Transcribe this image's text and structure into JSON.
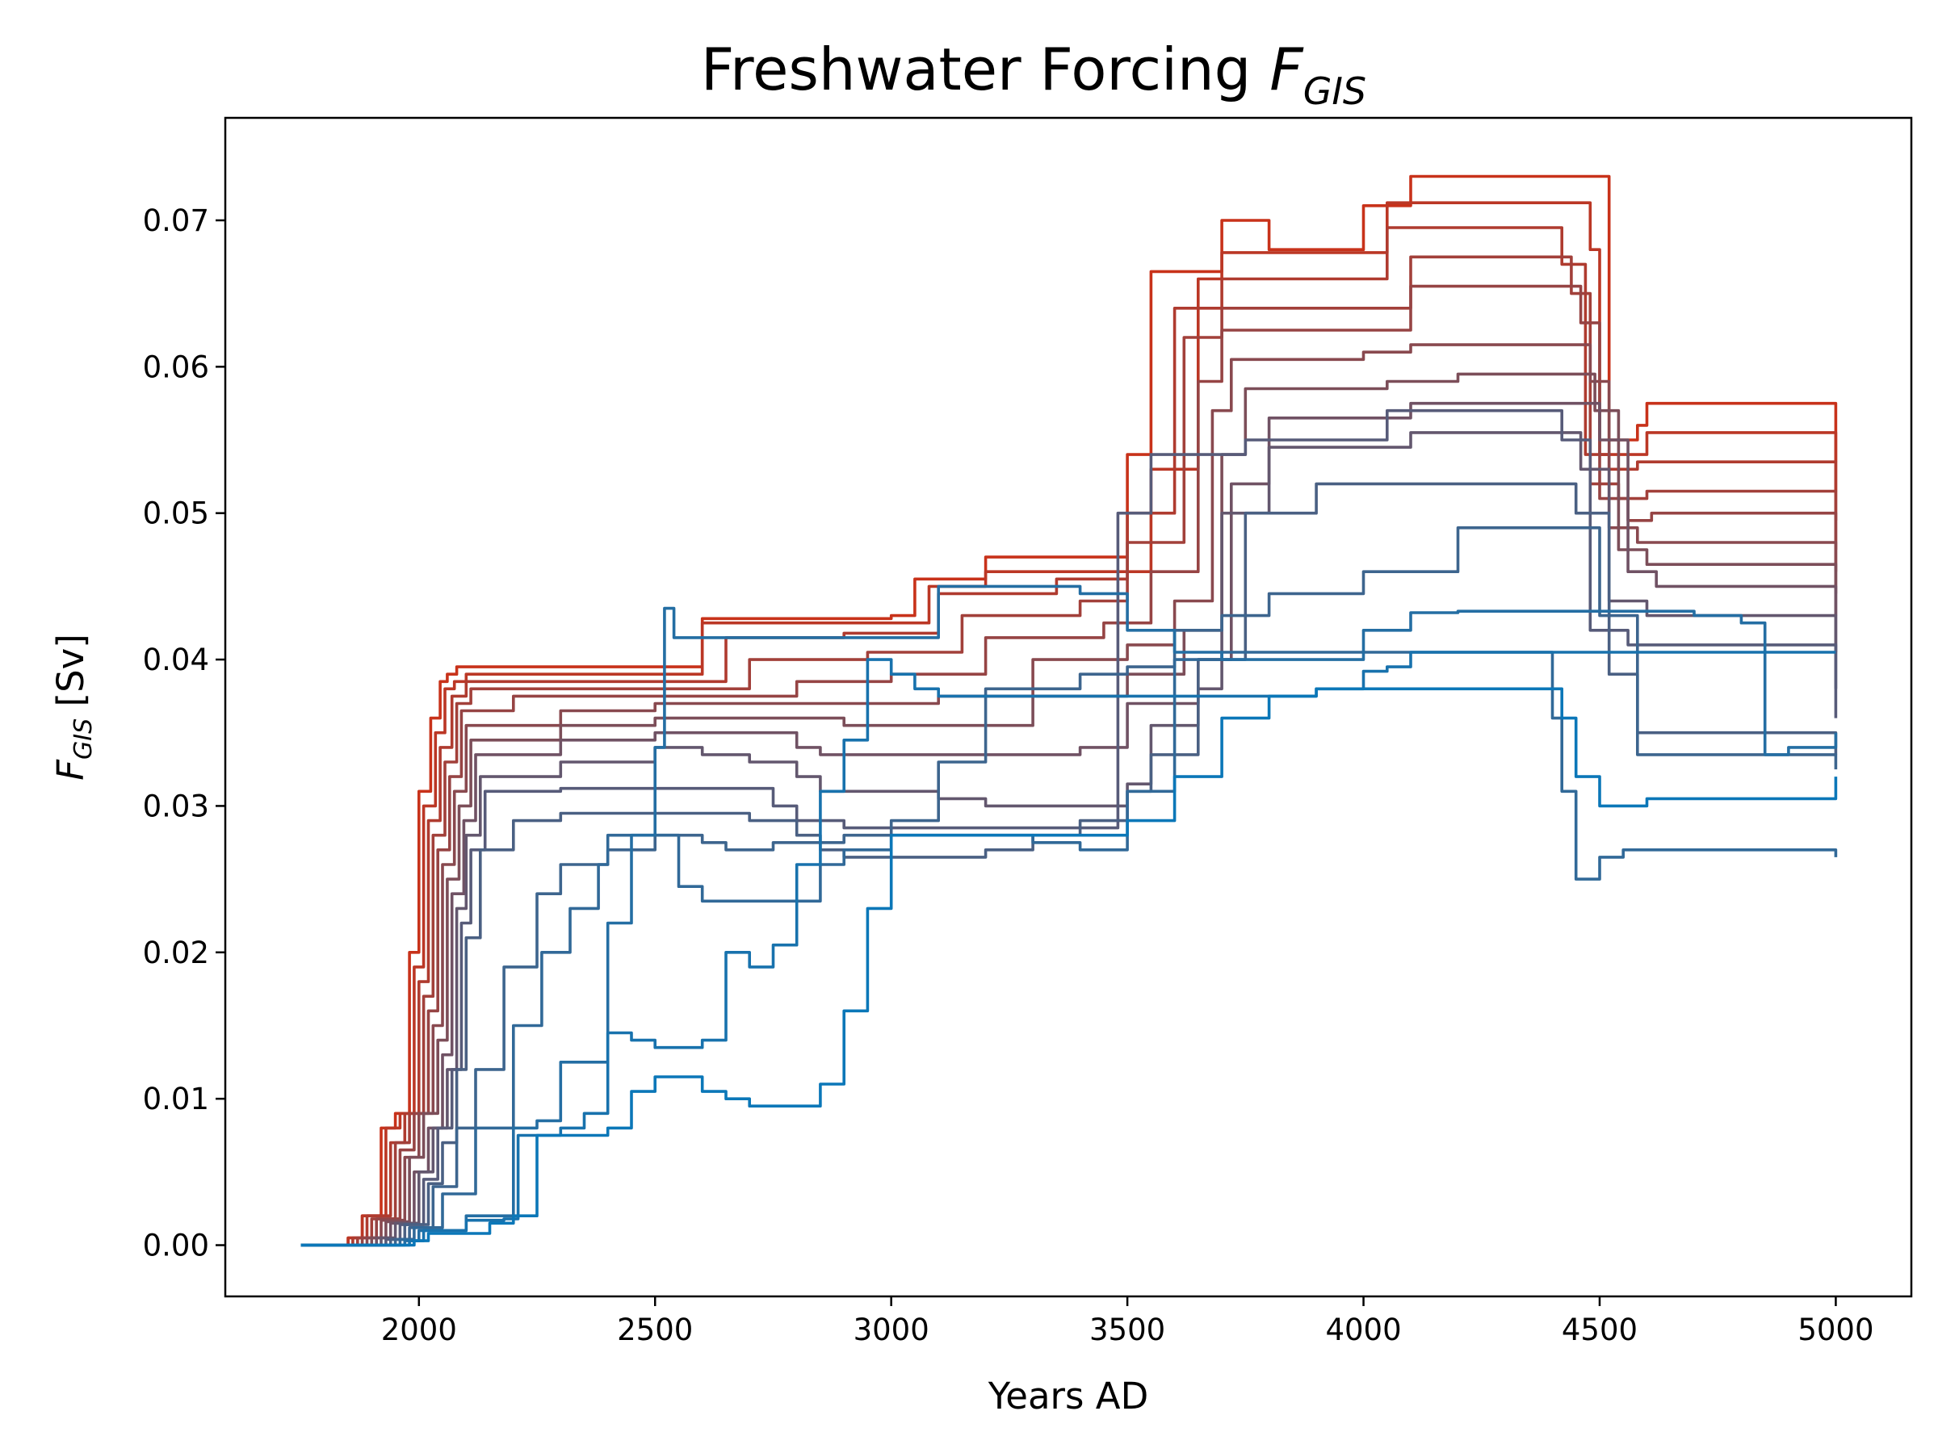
{
  "chart_data": {
    "type": "line",
    "title_main": "Freshwater Forcing ",
    "title_var": "F",
    "title_sub": "GIS",
    "xlabel": "Years AD",
    "ylabel_var": "F",
    "ylabel_sub": "GIS",
    "ylabel_unit": " [Sv]",
    "xlim": [
      1590,
      5160
    ],
    "ylim": [
      -0.0035,
      0.077
    ],
    "xticks": [
      2000,
      2500,
      3000,
      3500,
      4000,
      4500,
      5000
    ],
    "xtick_labels": [
      "2000",
      "2500",
      "3000",
      "3500",
      "4000",
      "4500",
      "5000"
    ],
    "yticks": [
      0.0,
      0.01,
      0.02,
      0.03,
      0.04,
      0.05,
      0.06,
      0.07
    ],
    "ytick_labels": [
      "0.00",
      "0.01",
      "0.02",
      "0.03",
      "0.04",
      "0.05",
      "0.06",
      "0.07"
    ],
    "grid": false,
    "legend": "none",
    "color_start": "#c8321a",
    "color_end": "#0b77b8",
    "series": [
      {
        "x": [
          1750,
          1850,
          1880,
          1920,
          1950,
          1980,
          2000,
          2025,
          2045,
          2060,
          2080,
          2100,
          2200,
          2400,
          2600,
          2800,
          3000,
          3050,
          3100,
          3200,
          3400,
          3500,
          3550,
          3600,
          3700,
          3800,
          3900,
          4000,
          4100,
          4200,
          4300,
          4500,
          4520,
          4580,
          4600,
          5000
        ],
        "y": [
          0.0,
          0.0005,
          0.002,
          0.008,
          0.009,
          0.02,
          0.031,
          0.036,
          0.0385,
          0.039,
          0.0395,
          0.0395,
          0.0395,
          0.0395,
          0.0428,
          0.0428,
          0.043,
          0.0455,
          0.0455,
          0.047,
          0.047,
          0.054,
          0.0665,
          0.0665,
          0.07,
          0.068,
          0.068,
          0.071,
          0.073,
          0.073,
          0.073,
          0.073,
          0.055,
          0.056,
          0.0575,
          0.0535
        ]
      },
      {
        "x": [
          1750,
          1850,
          1880,
          1930,
          1960,
          1990,
          2010,
          2035,
          2055,
          2075,
          2100,
          2200,
          2400,
          2600,
          2800,
          3000,
          3080,
          3200,
          3450,
          3550,
          3650,
          3700,
          3900,
          4050,
          4400,
          4480,
          4500,
          4550,
          4600,
          5000
        ],
        "y": [
          0.0,
          0.0005,
          0.002,
          0.008,
          0.009,
          0.019,
          0.03,
          0.035,
          0.038,
          0.0385,
          0.039,
          0.039,
          0.039,
          0.0425,
          0.0425,
          0.0425,
          0.045,
          0.046,
          0.046,
          0.053,
          0.066,
          0.0678,
          0.0678,
          0.0712,
          0.0712,
          0.068,
          0.054,
          0.054,
          0.0555,
          0.0515
        ]
      },
      {
        "x": [
          1750,
          1860,
          1890,
          1940,
          1970,
          2000,
          2020,
          2045,
          2070,
          2100,
          2250,
          2450,
          2650,
          2900,
          3100,
          3350,
          3500,
          3600,
          3700,
          3800,
          3950,
          4050,
          4100,
          4350,
          4420,
          4470,
          4520,
          4580,
          5000
        ],
        "y": [
          0.0,
          0.0005,
          0.002,
          0.007,
          0.009,
          0.018,
          0.029,
          0.034,
          0.0375,
          0.0385,
          0.0385,
          0.0385,
          0.0415,
          0.0418,
          0.0445,
          0.0455,
          0.05,
          0.064,
          0.066,
          0.066,
          0.066,
          0.0695,
          0.0695,
          0.0695,
          0.067,
          0.054,
          0.053,
          0.0535,
          0.0495
        ]
      },
      {
        "x": [
          1750,
          1870,
          1900,
          1950,
          1980,
          2010,
          2030,
          2055,
          2080,
          2110,
          2300,
          2500,
          2700,
          2950,
          3150,
          3400,
          3500,
          3620,
          3700,
          3850,
          4000,
          4100,
          4150,
          4350,
          4440,
          4480,
          4540,
          4600,
          5000
        ],
        "y": [
          0.0,
          0.0005,
          0.0018,
          0.007,
          0.009,
          0.017,
          0.028,
          0.033,
          0.037,
          0.038,
          0.038,
          0.038,
          0.04,
          0.0405,
          0.043,
          0.044,
          0.048,
          0.062,
          0.064,
          0.064,
          0.064,
          0.0675,
          0.0675,
          0.0675,
          0.065,
          0.052,
          0.051,
          0.0515,
          0.0475
        ]
      },
      {
        "x": [
          1750,
          1880,
          1910,
          1960,
          1990,
          2020,
          2040,
          2065,
          2090,
          2200,
          2400,
          2600,
          2800,
          3000,
          3200,
          3450,
          3550,
          3650,
          3700,
          3800,
          4000,
          4100,
          4200,
          4400,
          4460,
          4500,
          4560,
          4610,
          5000
        ],
        "y": [
          0.0,
          0.0005,
          0.0018,
          0.0065,
          0.009,
          0.016,
          0.027,
          0.032,
          0.0365,
          0.0375,
          0.0375,
          0.0375,
          0.0385,
          0.039,
          0.0415,
          0.0425,
          0.046,
          0.059,
          0.0625,
          0.0625,
          0.0625,
          0.0655,
          0.0655,
          0.0655,
          0.063,
          0.051,
          0.0495,
          0.05,
          0.046
        ]
      },
      {
        "x": [
          1750,
          1890,
          1920,
          1970,
          2000,
          2030,
          2050,
          2075,
          2100,
          2300,
          2500,
          2700,
          2900,
          3100,
          3300,
          3500,
          3600,
          3680,
          3720,
          3850,
          4000,
          4100,
          4200,
          4400,
          4480,
          4520,
          4580,
          4620,
          5000
        ],
        "y": [
          0.0,
          0.0005,
          0.0017,
          0.006,
          0.009,
          0.015,
          0.026,
          0.031,
          0.0355,
          0.0365,
          0.037,
          0.037,
          0.037,
          0.0375,
          0.04,
          0.041,
          0.044,
          0.057,
          0.0605,
          0.0605,
          0.061,
          0.0615,
          0.0615,
          0.0615,
          0.059,
          0.049,
          0.048,
          0.048,
          0.0445
        ]
      },
      {
        "x": [
          1750,
          1900,
          1930,
          1980,
          2010,
          2040,
          2060,
          2085,
          2110,
          2300,
          2500,
          2700,
          2900,
          3100,
          3300,
          3500,
          3620,
          3700,
          3750,
          3900,
          4050,
          4200,
          4350,
          4400,
          4490,
          4540,
          4600,
          4630,
          5000
        ],
        "y": [
          0.0,
          0.0005,
          0.0016,
          0.006,
          0.009,
          0.014,
          0.025,
          0.03,
          0.0345,
          0.0355,
          0.036,
          0.036,
          0.0355,
          0.0355,
          0.0375,
          0.039,
          0.042,
          0.054,
          0.0585,
          0.0585,
          0.059,
          0.0595,
          0.0595,
          0.0595,
          0.057,
          0.0475,
          0.0465,
          0.0465,
          0.043
        ]
      },
      {
        "x": [
          1750,
          1910,
          1940,
          1990,
          2020,
          2050,
          2070,
          2095,
          2120,
          2300,
          2500,
          2650,
          2800,
          2850,
          3000,
          3200,
          3400,
          3500,
          3650,
          3720,
          3800,
          4000,
          4100,
          4300,
          4450,
          4500,
          4560,
          4620,
          5000
        ],
        "y": [
          0.0,
          0.0005,
          0.0015,
          0.005,
          0.008,
          0.013,
          0.024,
          0.029,
          0.0335,
          0.0345,
          0.035,
          0.035,
          0.034,
          0.0335,
          0.0335,
          0.0335,
          0.034,
          0.037,
          0.04,
          0.052,
          0.0565,
          0.0565,
          0.0575,
          0.0575,
          0.0575,
          0.055,
          0.046,
          0.045,
          0.0405
        ]
      },
      {
        "x": [
          1750,
          1920,
          1950,
          2000,
          2030,
          2060,
          2080,
          2100,
          2130,
          2300,
          2500,
          2600,
          2700,
          2800,
          2850,
          2950,
          3100,
          3200,
          3300,
          3500,
          3550,
          3650,
          3700,
          3800,
          4000,
          4100,
          4300,
          4420,
          4460,
          4520,
          4600,
          5000
        ],
        "y": [
          0.0,
          0.0005,
          0.0015,
          0.005,
          0.008,
          0.012,
          0.023,
          0.028,
          0.032,
          0.033,
          0.034,
          0.0335,
          0.033,
          0.032,
          0.031,
          0.031,
          0.0305,
          0.03,
          0.03,
          0.0315,
          0.0355,
          0.038,
          0.05,
          0.0545,
          0.0545,
          0.0555,
          0.0555,
          0.0555,
          0.053,
          0.044,
          0.043,
          0.038
        ]
      },
      {
        "x": [
          1750,
          1930,
          1960,
          2010,
          2040,
          2070,
          2090,
          2110,
          2140,
          2300,
          2500,
          2650,
          2750,
          2800,
          2900,
          3000,
          3100,
          3200,
          3300,
          3400,
          3480,
          3550,
          3600,
          3750,
          3950,
          4050,
          4250,
          4350,
          4420,
          4480,
          4560,
          5000
        ],
        "y": [
          0.0,
          0.0004,
          0.0014,
          0.0045,
          0.008,
          0.012,
          0.022,
          0.027,
          0.031,
          0.0312,
          0.0312,
          0.0312,
          0.03,
          0.029,
          0.0285,
          0.0285,
          0.0285,
          0.0285,
          0.0285,
          0.0285,
          0.05,
          0.054,
          0.054,
          0.055,
          0.055,
          0.057,
          0.057,
          0.057,
          0.055,
          0.042,
          0.041,
          0.036
        ]
      },
      {
        "x": [
          1750,
          1940,
          1970,
          2020,
          2050,
          2080,
          2100,
          2130,
          2200,
          2300,
          2500,
          2600,
          2700,
          2800,
          2850,
          2900,
          3000,
          3100,
          3200,
          3300,
          3400,
          3500,
          3550,
          3650,
          3750,
          3900,
          4000,
          4200,
          4380,
          4450,
          4520,
          4580,
          5000
        ],
        "y": [
          0.0,
          0.0004,
          0.0014,
          0.0042,
          0.007,
          0.012,
          0.021,
          0.027,
          0.029,
          0.0295,
          0.0295,
          0.0295,
          0.029,
          0.028,
          0.027,
          0.0265,
          0.0265,
          0.0265,
          0.027,
          0.028,
          0.029,
          0.031,
          0.0335,
          0.04,
          0.05,
          0.052,
          0.052,
          0.052,
          0.052,
          0.05,
          0.039,
          0.035,
          0.0335
        ]
      },
      {
        "x": [
          1750,
          1950,
          1980,
          2030,
          2080,
          2120,
          2180,
          2250,
          2300,
          2400,
          2500,
          2550,
          2600,
          2650,
          2700,
          2750,
          2800,
          2900,
          3000,
          3100,
          3200,
          3300,
          3400,
          3500,
          3600,
          3700,
          3800,
          4000,
          4200,
          4400,
          4450,
          4500,
          4580,
          5000
        ],
        "y": [
          0.0,
          0.0004,
          0.0012,
          0.004,
          0.008,
          0.012,
          0.019,
          0.024,
          0.026,
          0.027,
          0.028,
          0.028,
          0.0275,
          0.027,
          0.027,
          0.0275,
          0.0275,
          0.028,
          0.029,
          0.033,
          0.038,
          0.038,
          0.039,
          0.0395,
          0.042,
          0.043,
          0.0445,
          0.046,
          0.049,
          0.049,
          0.049,
          0.043,
          0.0335,
          0.0325
        ]
      },
      {
        "x": [
          1750,
          1960,
          1990,
          2050,
          2120,
          2200,
          2260,
          2320,
          2380,
          2400,
          2500,
          2550,
          2600,
          2650,
          2700,
          2800,
          2850,
          2900,
          3000,
          3100,
          3200,
          3300,
          3400,
          3500,
          3600,
          3700,
          3800,
          3900,
          4000,
          4100,
          4200,
          4300,
          4400,
          4420,
          4450,
          4500,
          4550,
          5000
        ],
        "y": [
          0.0,
          0.0004,
          0.0012,
          0.0035,
          0.008,
          0.015,
          0.02,
          0.023,
          0.026,
          0.028,
          0.028,
          0.0245,
          0.0235,
          0.0235,
          0.0235,
          0.0235,
          0.026,
          0.027,
          0.028,
          0.028,
          0.028,
          0.0275,
          0.027,
          0.031,
          0.04,
          0.0405,
          0.0405,
          0.0405,
          0.0405,
          0.0405,
          0.0405,
          0.0405,
          0.036,
          0.031,
          0.025,
          0.0265,
          0.027,
          0.0265
        ]
      },
      {
        "x": [
          1750,
          1970,
          2000,
          2100,
          2170,
          2200,
          2250,
          2300,
          2400,
          2450,
          2500,
          2520,
          2540,
          2600,
          2700,
          2800,
          2900,
          3000,
          3100,
          3150,
          3300,
          3400,
          3500,
          3600,
          3700,
          3900,
          4000,
          4100,
          4200,
          4400,
          4600,
          4700,
          4800,
          4850,
          4900,
          5000
        ],
        "y": [
          0.0,
          0.0003,
          0.001,
          0.002,
          0.002,
          0.008,
          0.0085,
          0.0125,
          0.022,
          0.028,
          0.034,
          0.0435,
          0.0415,
          0.0415,
          0.0415,
          0.0415,
          0.0415,
          0.0415,
          0.045,
          0.045,
          0.045,
          0.0445,
          0.042,
          0.0405,
          0.04,
          0.04,
          0.042,
          0.0432,
          0.0433,
          0.0433,
          0.0433,
          0.043,
          0.0425,
          0.0335,
          0.034,
          0.035
        ]
      },
      {
        "x": [
          1750,
          1980,
          2010,
          2100,
          2180,
          2210,
          2250,
          2300,
          2350,
          2400,
          2450,
          2500,
          2550,
          2600,
          2650,
          2700,
          2750,
          2800,
          2850,
          2900,
          2950,
          3000,
          3050,
          3100,
          3300,
          3500,
          3700,
          3900,
          4000,
          4050,
          4100,
          4200,
          4400,
          4600,
          4800,
          5000
        ],
        "y": [
          0.0,
          0.0003,
          0.001,
          0.0017,
          0.0018,
          0.0075,
          0.0075,
          0.008,
          0.009,
          0.0145,
          0.014,
          0.0135,
          0.0135,
          0.014,
          0.02,
          0.019,
          0.0205,
          0.026,
          0.031,
          0.0345,
          0.04,
          0.039,
          0.038,
          0.0375,
          0.0375,
          0.0375,
          0.0375,
          0.038,
          0.0392,
          0.0395,
          0.0405,
          0.0405,
          0.0405,
          0.0405,
          0.0405,
          0.0405
        ]
      },
      {
        "x": [
          1750,
          1990,
          2020,
          2150,
          2200,
          2250,
          2300,
          2350,
          2400,
          2450,
          2500,
          2550,
          2600,
          2650,
          2700,
          2750,
          2800,
          2850,
          2900,
          2950,
          3000,
          3100,
          3200,
          3300,
          3400,
          3500,
          3600,
          3700,
          3800,
          3900,
          4000,
          4100,
          4200,
          4300,
          4400,
          4420,
          4450,
          4500,
          4520,
          4600,
          5000
        ],
        "y": [
          0.0,
          0.0003,
          0.0008,
          0.0015,
          0.002,
          0.0075,
          0.0075,
          0.0075,
          0.008,
          0.0105,
          0.0115,
          0.0115,
          0.0105,
          0.01,
          0.0095,
          0.0095,
          0.0095,
          0.011,
          0.016,
          0.023,
          0.028,
          0.028,
          0.028,
          0.028,
          0.028,
          0.029,
          0.032,
          0.036,
          0.0375,
          0.038,
          0.038,
          0.038,
          0.038,
          0.038,
          0.038,
          0.036,
          0.032,
          0.03,
          0.03,
          0.0305,
          0.032
        ]
      }
    ]
  }
}
